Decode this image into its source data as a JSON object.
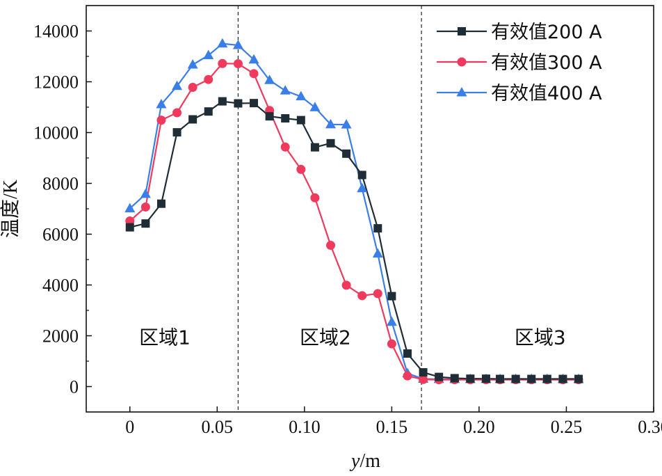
{
  "chart_data": {
    "type": "line",
    "xlabel_var": "y",
    "xlabel_unit": "/m",
    "ylabel": "温度/K",
    "xlim": [
      -0.025,
      0.3
    ],
    "ylim": [
      -1000,
      15000
    ],
    "xticks": [
      0,
      0.05,
      0.1,
      0.15,
      0.2,
      0.25,
      0.3
    ],
    "xtick_labels": [
      "0",
      "0.05",
      "0.10",
      "0.15",
      "0.20",
      "0.25",
      "0.30"
    ],
    "yticks": [
      0,
      2000,
      4000,
      6000,
      8000,
      10000,
      12000,
      14000
    ],
    "ytick_labels": [
      "0",
      "2000",
      "4000",
      "6000",
      "8000",
      "10000",
      "12000",
      "14000"
    ],
    "vlines": [
      0.062,
      0.167
    ],
    "regions": [
      {
        "label": "区域1",
        "x": 0.02,
        "y": 1950
      },
      {
        "label": "区域2",
        "x": 0.112,
        "y": 1950
      },
      {
        "label": "区域3",
        "x": 0.235,
        "y": 1950
      }
    ],
    "legend_position": "top-right",
    "grid": false,
    "x": [
      0,
      0.009,
      0.018,
      0.027,
      0.036,
      0.045,
      0.053,
      0.062,
      0.071,
      0.08,
      0.089,
      0.098,
      0.106,
      0.115,
      0.124,
      0.133,
      0.142,
      0.15,
      0.159,
      0.168,
      0.177,
      0.186,
      0.195,
      0.204,
      0.212,
      0.221,
      0.23,
      0.239,
      0.248,
      0.257
    ],
    "series": [
      {
        "name": "有效值200 A",
        "color": "#1f2d36",
        "marker": "square",
        "values": [
          6270,
          6420,
          7200,
          10010,
          10520,
          10830,
          11230,
          11150,
          11160,
          10640,
          10560,
          10490,
          9420,
          9580,
          9170,
          8330,
          6230,
          3560,
          1300,
          560,
          380,
          330,
          310,
          310,
          300,
          300,
          300,
          300,
          300,
          300
        ]
      },
      {
        "name": "有效值300 A",
        "color": "#ef3a5d",
        "marker": "circle",
        "values": [
          6520,
          7070,
          10490,
          10780,
          11780,
          12090,
          12720,
          12710,
          12320,
          10870,
          9430,
          8550,
          7430,
          5560,
          3990,
          3580,
          3660,
          1680,
          420,
          280,
          270,
          270,
          270,
          270,
          270,
          270,
          270,
          270,
          270,
          270
        ]
      },
      {
        "name": "有效值400 A",
        "color": "#3a7ee8",
        "marker": "triangle",
        "values": [
          7010,
          7580,
          11110,
          11830,
          12670,
          13040,
          13500,
          13440,
          12870,
          12060,
          11650,
          11420,
          10990,
          10320,
          10310,
          7800,
          5230,
          2540,
          520,
          300,
          290,
          290,
          290,
          290,
          290,
          290,
          290,
          290,
          290,
          290
        ]
      }
    ]
  }
}
